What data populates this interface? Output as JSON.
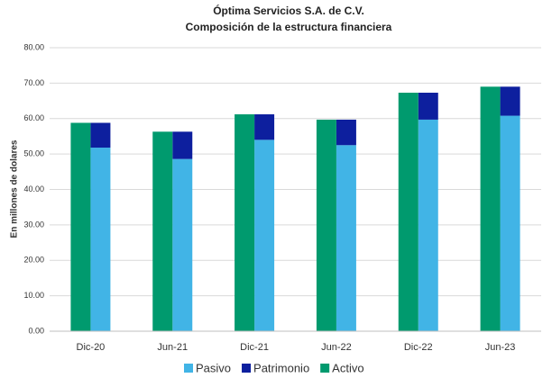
{
  "chart_data": {
    "type": "bar",
    "title": "Óptima Servicios S.A. de C.V.",
    "subtitle": "Composición de la estructura financiera",
    "y_label": "En millones de dolares",
    "categories": [
      "Dic-20",
      "Jun-21",
      "Dic-21",
      "Jun-22",
      "Dic-22",
      "Jun-23"
    ],
    "series": [
      {
        "name": "Pasivo",
        "color": "#41b4e6",
        "stack": 1,
        "values": [
          51.8,
          48.6,
          54.0,
          52.5,
          59.7,
          60.8
        ]
      },
      {
        "name": "Patrimonio",
        "color": "#0d1f9e",
        "stack": 1,
        "values": [
          7.0,
          7.7,
          7.2,
          7.2,
          7.6,
          8.2
        ]
      },
      {
        "name": "Activo",
        "color": "#009a6e",
        "stack": 0,
        "values": [
          58.8,
          56.3,
          61.2,
          59.7,
          67.3,
          69.0
        ]
      }
    ],
    "ylim": [
      0,
      80
    ],
    "yticks": [
      {
        "value": 0,
        "label": "0.00"
      },
      {
        "value": 10,
        "label": "10.00"
      },
      {
        "value": 20,
        "label": "20.00"
      },
      {
        "value": 30,
        "label": "30.00"
      },
      {
        "value": 40,
        "label": "40.00"
      },
      {
        "value": 50,
        "label": "50.00"
      },
      {
        "value": 60,
        "label": "60.00"
      },
      {
        "value": 70,
        "label": "70.00"
      },
      {
        "value": 80,
        "label": "80.00"
      }
    ],
    "grid": true,
    "legend": "bottom"
  }
}
